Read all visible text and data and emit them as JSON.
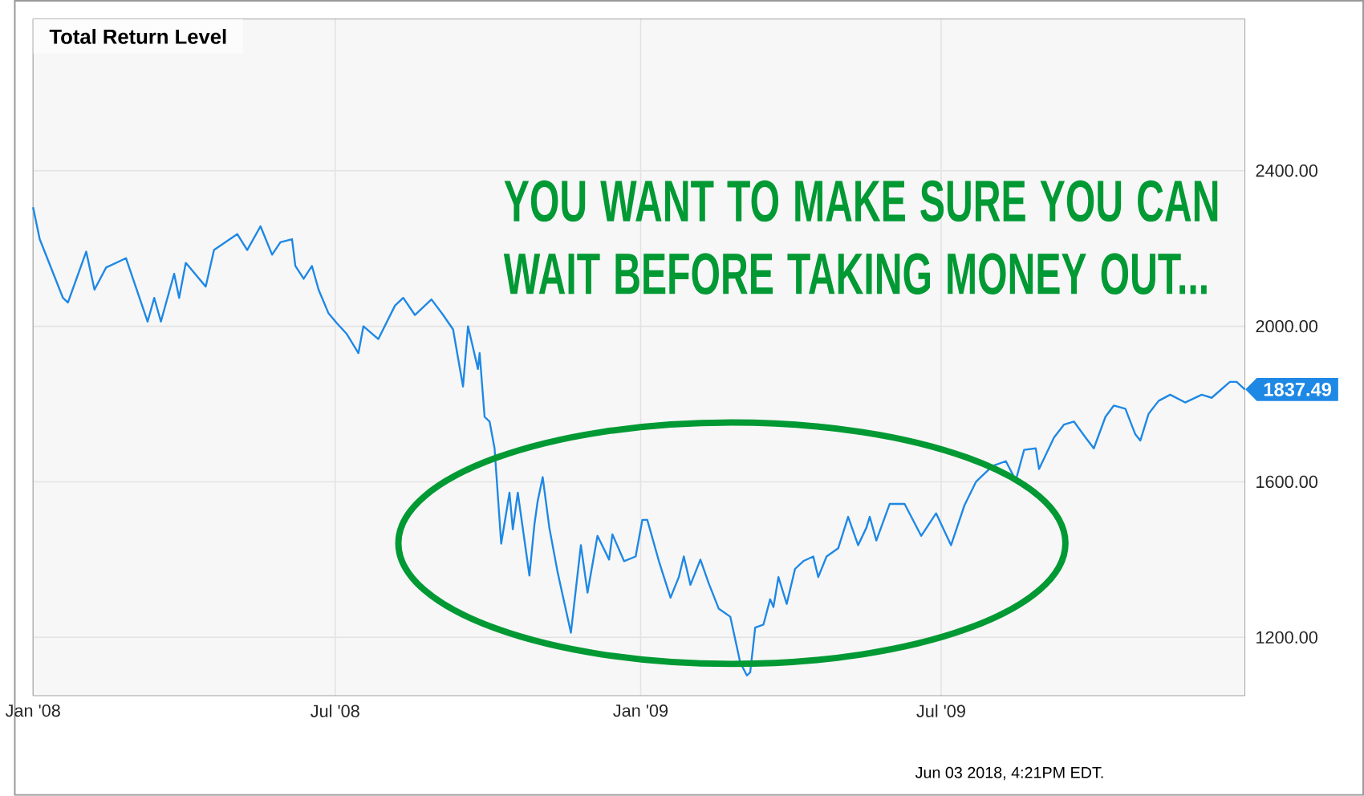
{
  "chart_data": {
    "type": "line",
    "title": "Total Return Level",
    "annotations": [
      "YOU WANT TO MAKE SURE YOU CAN WAIT BEFORE TAKING MONEY OUT...",
      {
        "text": "1837.49",
        "x": "2009-12-31",
        "y": 1837.49
      },
      "Jun 03 2018, 4:21PM EDT."
    ],
    "x": [
      "2008-01-01",
      "2008-01-05",
      "2008-01-19",
      "2008-01-22",
      "2008-02-02",
      "2008-02-07",
      "2008-02-14",
      "2008-02-26",
      "2008-03-10",
      "2008-03-14",
      "2008-03-18",
      "2008-03-26",
      "2008-03-29",
      "2008-04-02",
      "2008-04-14",
      "2008-04-19",
      "2008-05-03",
      "2008-05-09",
      "2008-05-17",
      "2008-05-24",
      "2008-05-29",
      "2008-06-05",
      "2008-06-07",
      "2008-06-12",
      "2008-06-17",
      "2008-06-21",
      "2008-06-27",
      "2008-07-02",
      "2008-07-08",
      "2008-07-15",
      "2008-07-18",
      "2008-07-27",
      "2008-08-06",
      "2008-08-11",
      "2008-08-18",
      "2008-08-28",
      "2008-09-04",
      "2008-09-10",
      "2008-09-16",
      "2008-09-19",
      "2008-09-25",
      "2008-09-26",
      "2008-09-29",
      "2008-10-02",
      "2008-10-05",
      "2008-10-09",
      "2008-10-14",
      "2008-10-16",
      "2008-10-19",
      "2008-10-26",
      "2008-10-29",
      "2008-10-31",
      "2008-11-03",
      "2008-11-07",
      "2008-11-12",
      "2008-11-20",
      "2008-11-26",
      "2008-11-30",
      "2008-12-06",
      "2008-12-13",
      "2008-12-15",
      "2008-12-22",
      "2008-12-29",
      "2009-01-02",
      "2009-01-05",
      "2009-01-12",
      "2009-01-19",
      "2009-01-24",
      "2009-01-27",
      "2009-01-31",
      "2009-02-06",
      "2009-02-11",
      "2009-02-17",
      "2009-02-24",
      "2009-03-02",
      "2009-03-06",
      "2009-03-08",
      "2009-03-11",
      "2009-03-16",
      "2009-03-20",
      "2009-03-22",
      "2009-03-25",
      "2009-03-30",
      "2009-04-04",
      "2009-04-09",
      "2009-04-15",
      "2009-04-18",
      "2009-04-23",
      "2009-04-30",
      "2009-05-06",
      "2009-05-12",
      "2009-05-17",
      "2009-05-19",
      "2009-05-23",
      "2009-05-31",
      "2009-06-09",
      "2009-06-19",
      "2009-06-28",
      "2009-07-07",
      "2009-07-15",
      "2009-07-22",
      "2009-08-01",
      "2009-08-09",
      "2009-08-15",
      "2009-08-20",
      "2009-08-27",
      "2009-08-29",
      "2009-09-07",
      "2009-09-13",
      "2009-09-19",
      "2009-09-26",
      "2009-10-01",
      "2009-10-08",
      "2009-10-13",
      "2009-10-20",
      "2009-10-26",
      "2009-10-29",
      "2009-11-03",
      "2009-11-09",
      "2009-11-16",
      "2009-11-25",
      "2009-12-05",
      "2009-12-11",
      "2009-12-22",
      "2009-12-26",
      "2009-12-31"
    ],
    "series": [
      {
        "color": "#1e88e5",
        "values": [
          2306,
          2224,
          2073,
          2061,
          2192,
          2094,
          2151,
          2175,
          2012,
          2073,
          2012,
          2135,
          2073,
          2163,
          2102,
          2196,
          2237,
          2196,
          2257,
          2184,
          2216,
          2224,
          2155,
          2122,
          2155,
          2094,
          2033,
          2008,
          1980,
          1931,
          2000,
          1967,
          2053,
          2073,
          2029,
          2069,
          2029,
          1992,
          1845,
          2000,
          1890,
          1931,
          1767,
          1755,
          1686,
          1441,
          1572,
          1478,
          1572,
          1359,
          1490,
          1551,
          1612,
          1482,
          1367,
          1212,
          1437,
          1315,
          1461,
          1400,
          1465,
          1396,
          1408,
          1502,
          1502,
          1396,
          1302,
          1355,
          1408,
          1335,
          1400,
          1339,
          1274,
          1253,
          1135,
          1102,
          1110,
          1225,
          1233,
          1298,
          1278,
          1355,
          1286,
          1376,
          1396,
          1408,
          1355,
          1408,
          1429,
          1510,
          1437,
          1482,
          1510,
          1449,
          1543,
          1543,
          1461,
          1519,
          1437,
          1539,
          1600,
          1641,
          1653,
          1604,
          1682,
          1686,
          1633,
          1714,
          1747,
          1755,
          1714,
          1686,
          1767,
          1796,
          1788,
          1722,
          1706,
          1775,
          1808,
          1824,
          1804,
          1824,
          1816,
          1857,
          1857,
          1837.49
        ]
      }
    ],
    "xlim": [
      "2008-01-01",
      "2009-12-31"
    ],
    "xticks": [
      {
        "value": "2008-01-01",
        "label": "Jan '08"
      },
      {
        "value": "2008-07-01",
        "label": "Jul '08"
      },
      {
        "value": "2009-01-01",
        "label": "Jan '09"
      },
      {
        "value": "2009-07-01",
        "label": "Jul '09"
      }
    ],
    "ylim": [
      1050,
      2790
    ],
    "yticks": [
      {
        "value": 1200,
        "label": "1200.00"
      },
      {
        "value": 1600,
        "label": "1600.00"
      },
      {
        "value": 2000,
        "label": "2000.00"
      },
      {
        "value": 2400,
        "label": "2400.00"
      }
    ],
    "grid": true
  }
}
